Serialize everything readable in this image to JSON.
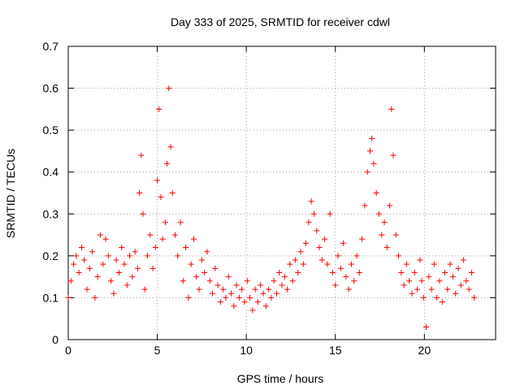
{
  "chart_data": {
    "type": "scatter",
    "title": "Day 333 of 2025, SRMTID for receiver cdwl",
    "xlabel": "GPS time / hours",
    "ylabel": "SRMTID / TECUs",
    "xlim": [
      0,
      24
    ],
    "ylim": [
      0,
      0.7
    ],
    "x_ticks": [
      0,
      5,
      10,
      15,
      20
    ],
    "x_tick_labels": [
      "0",
      "5",
      "10",
      "15",
      "20"
    ],
    "y_ticks": [
      0,
      0.1,
      0.2,
      0.3,
      0.4,
      0.5,
      0.6,
      0.7
    ],
    "y_tick_labels": [
      "0",
      "0.1",
      "0.2",
      "0.3",
      "0.4",
      "0.5",
      "0.6",
      "0.7"
    ],
    "grid": true,
    "marker": "plus",
    "marker_color": "#ff0000",
    "series": [
      {
        "name": "SRMTID",
        "x": [
          0.0,
          0.15,
          0.3,
          0.45,
          0.6,
          0.75,
          0.9,
          1.05,
          1.2,
          1.35,
          1.5,
          1.65,
          1.8,
          1.95,
          2.1,
          2.25,
          2.4,
          2.55,
          2.7,
          2.85,
          3.0,
          3.15,
          3.3,
          3.45,
          3.6,
          3.75,
          3.9,
          4.0,
          4.1,
          4.2,
          4.3,
          4.45,
          4.6,
          4.75,
          4.9,
          5.0,
          5.1,
          5.2,
          5.3,
          5.45,
          5.55,
          5.65,
          5.75,
          5.85,
          6.0,
          6.15,
          6.3,
          6.45,
          6.6,
          6.75,
          6.9,
          7.05,
          7.2,
          7.35,
          7.5,
          7.65,
          7.8,
          7.95,
          8.1,
          8.25,
          8.4,
          8.55,
          8.7,
          8.85,
          9.0,
          9.15,
          9.3,
          9.45,
          9.6,
          9.75,
          9.9,
          10.05,
          10.2,
          10.35,
          10.5,
          10.65,
          10.8,
          10.95,
          11.1,
          11.25,
          11.4,
          11.55,
          11.7,
          11.85,
          12.0,
          12.15,
          12.3,
          12.45,
          12.6,
          12.75,
          12.9,
          13.05,
          13.2,
          13.35,
          13.5,
          13.65,
          13.8,
          13.95,
          14.1,
          14.25,
          14.4,
          14.55,
          14.7,
          14.85,
          15.0,
          15.15,
          15.3,
          15.45,
          15.6,
          15.75,
          15.9,
          16.05,
          16.2,
          16.35,
          16.5,
          16.65,
          16.8,
          16.95,
          17.05,
          17.15,
          17.3,
          17.45,
          17.6,
          17.75,
          17.9,
          18.05,
          18.15,
          18.25,
          18.4,
          18.55,
          18.7,
          18.85,
          19.0,
          19.15,
          19.3,
          19.45,
          19.6,
          19.75,
          19.85,
          19.95,
          20.1,
          20.25,
          20.4,
          20.55,
          20.7,
          20.85,
          21.0,
          21.15,
          21.3,
          21.45,
          21.6,
          21.75,
          21.9,
          22.05,
          22.2,
          22.35,
          22.5,
          22.65,
          22.8
        ],
        "y": [
          0.1,
          0.14,
          0.18,
          0.2,
          0.16,
          0.22,
          0.19,
          0.12,
          0.17,
          0.21,
          0.1,
          0.15,
          0.25,
          0.18,
          0.24,
          0.2,
          0.14,
          0.11,
          0.19,
          0.16,
          0.22,
          0.18,
          0.13,
          0.2,
          0.15,
          0.21,
          0.17,
          0.35,
          0.44,
          0.3,
          0.12,
          0.2,
          0.25,
          0.17,
          0.22,
          0.38,
          0.55,
          0.34,
          0.24,
          0.28,
          0.42,
          0.6,
          0.46,
          0.35,
          0.25,
          0.2,
          0.28,
          0.14,
          0.22,
          0.1,
          0.18,
          0.24,
          0.15,
          0.12,
          0.19,
          0.16,
          0.21,
          0.14,
          0.11,
          0.17,
          0.13,
          0.09,
          0.12,
          0.1,
          0.15,
          0.11,
          0.08,
          0.13,
          0.1,
          0.12,
          0.09,
          0.14,
          0.1,
          0.07,
          0.12,
          0.09,
          0.13,
          0.11,
          0.08,
          0.12,
          0.1,
          0.14,
          0.11,
          0.16,
          0.13,
          0.15,
          0.12,
          0.18,
          0.14,
          0.19,
          0.16,
          0.21,
          0.18,
          0.23,
          0.28,
          0.33,
          0.3,
          0.26,
          0.22,
          0.19,
          0.24,
          0.18,
          0.3,
          0.16,
          0.13,
          0.2,
          0.17,
          0.23,
          0.15,
          0.12,
          0.18,
          0.14,
          0.2,
          0.16,
          0.24,
          0.32,
          0.4,
          0.45,
          0.48,
          0.42,
          0.35,
          0.3,
          0.25,
          0.28,
          0.22,
          0.32,
          0.55,
          0.44,
          0.25,
          0.2,
          0.16,
          0.13,
          0.18,
          0.14,
          0.11,
          0.16,
          0.12,
          0.19,
          0.14,
          0.1,
          0.03,
          0.15,
          0.12,
          0.18,
          0.1,
          0.14,
          0.09,
          0.16,
          0.12,
          0.18,
          0.15,
          0.11,
          0.17,
          0.13,
          0.19,
          0.14,
          0.12,
          0.16,
          0.1
        ]
      }
    ]
  }
}
